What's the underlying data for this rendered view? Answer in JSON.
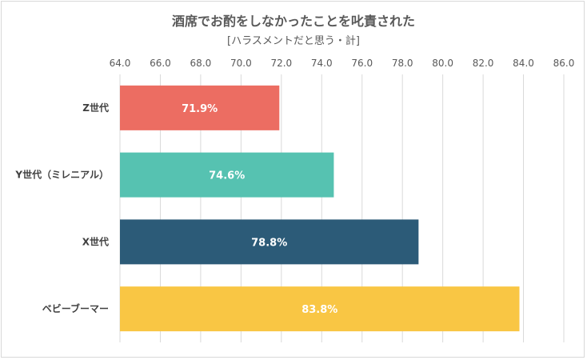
{
  "chart_data": {
    "type": "bar",
    "orientation": "horizontal",
    "title": "酒席でお酌をしなかったことを叱責された",
    "subtitle": "[ハラスメントだと思う・計]",
    "categories": [
      "Z世代",
      "Y世代（ミレニアル）",
      "X世代",
      "ベビーブーマー"
    ],
    "values": [
      71.9,
      74.6,
      78.8,
      83.8
    ],
    "data_labels": [
      "71.9%",
      "74.6%",
      "78.8%",
      "83.8%"
    ],
    "colors": [
      "#ec6d62",
      "#56c2b1",
      "#2c5b78",
      "#f9c644"
    ],
    "xlim": [
      64,
      86
    ],
    "ticks": [
      "64.0",
      "66.0",
      "68.0",
      "70.0",
      "72.0",
      "74.0",
      "76.0",
      "78.0",
      "80.0",
      "82.0",
      "84.0",
      "86.0"
    ],
    "tick_values": [
      64,
      66,
      68,
      70,
      72,
      74,
      76,
      78,
      80,
      82,
      84,
      86
    ],
    "axis_position": "top",
    "grid": true,
    "legend": "none"
  }
}
